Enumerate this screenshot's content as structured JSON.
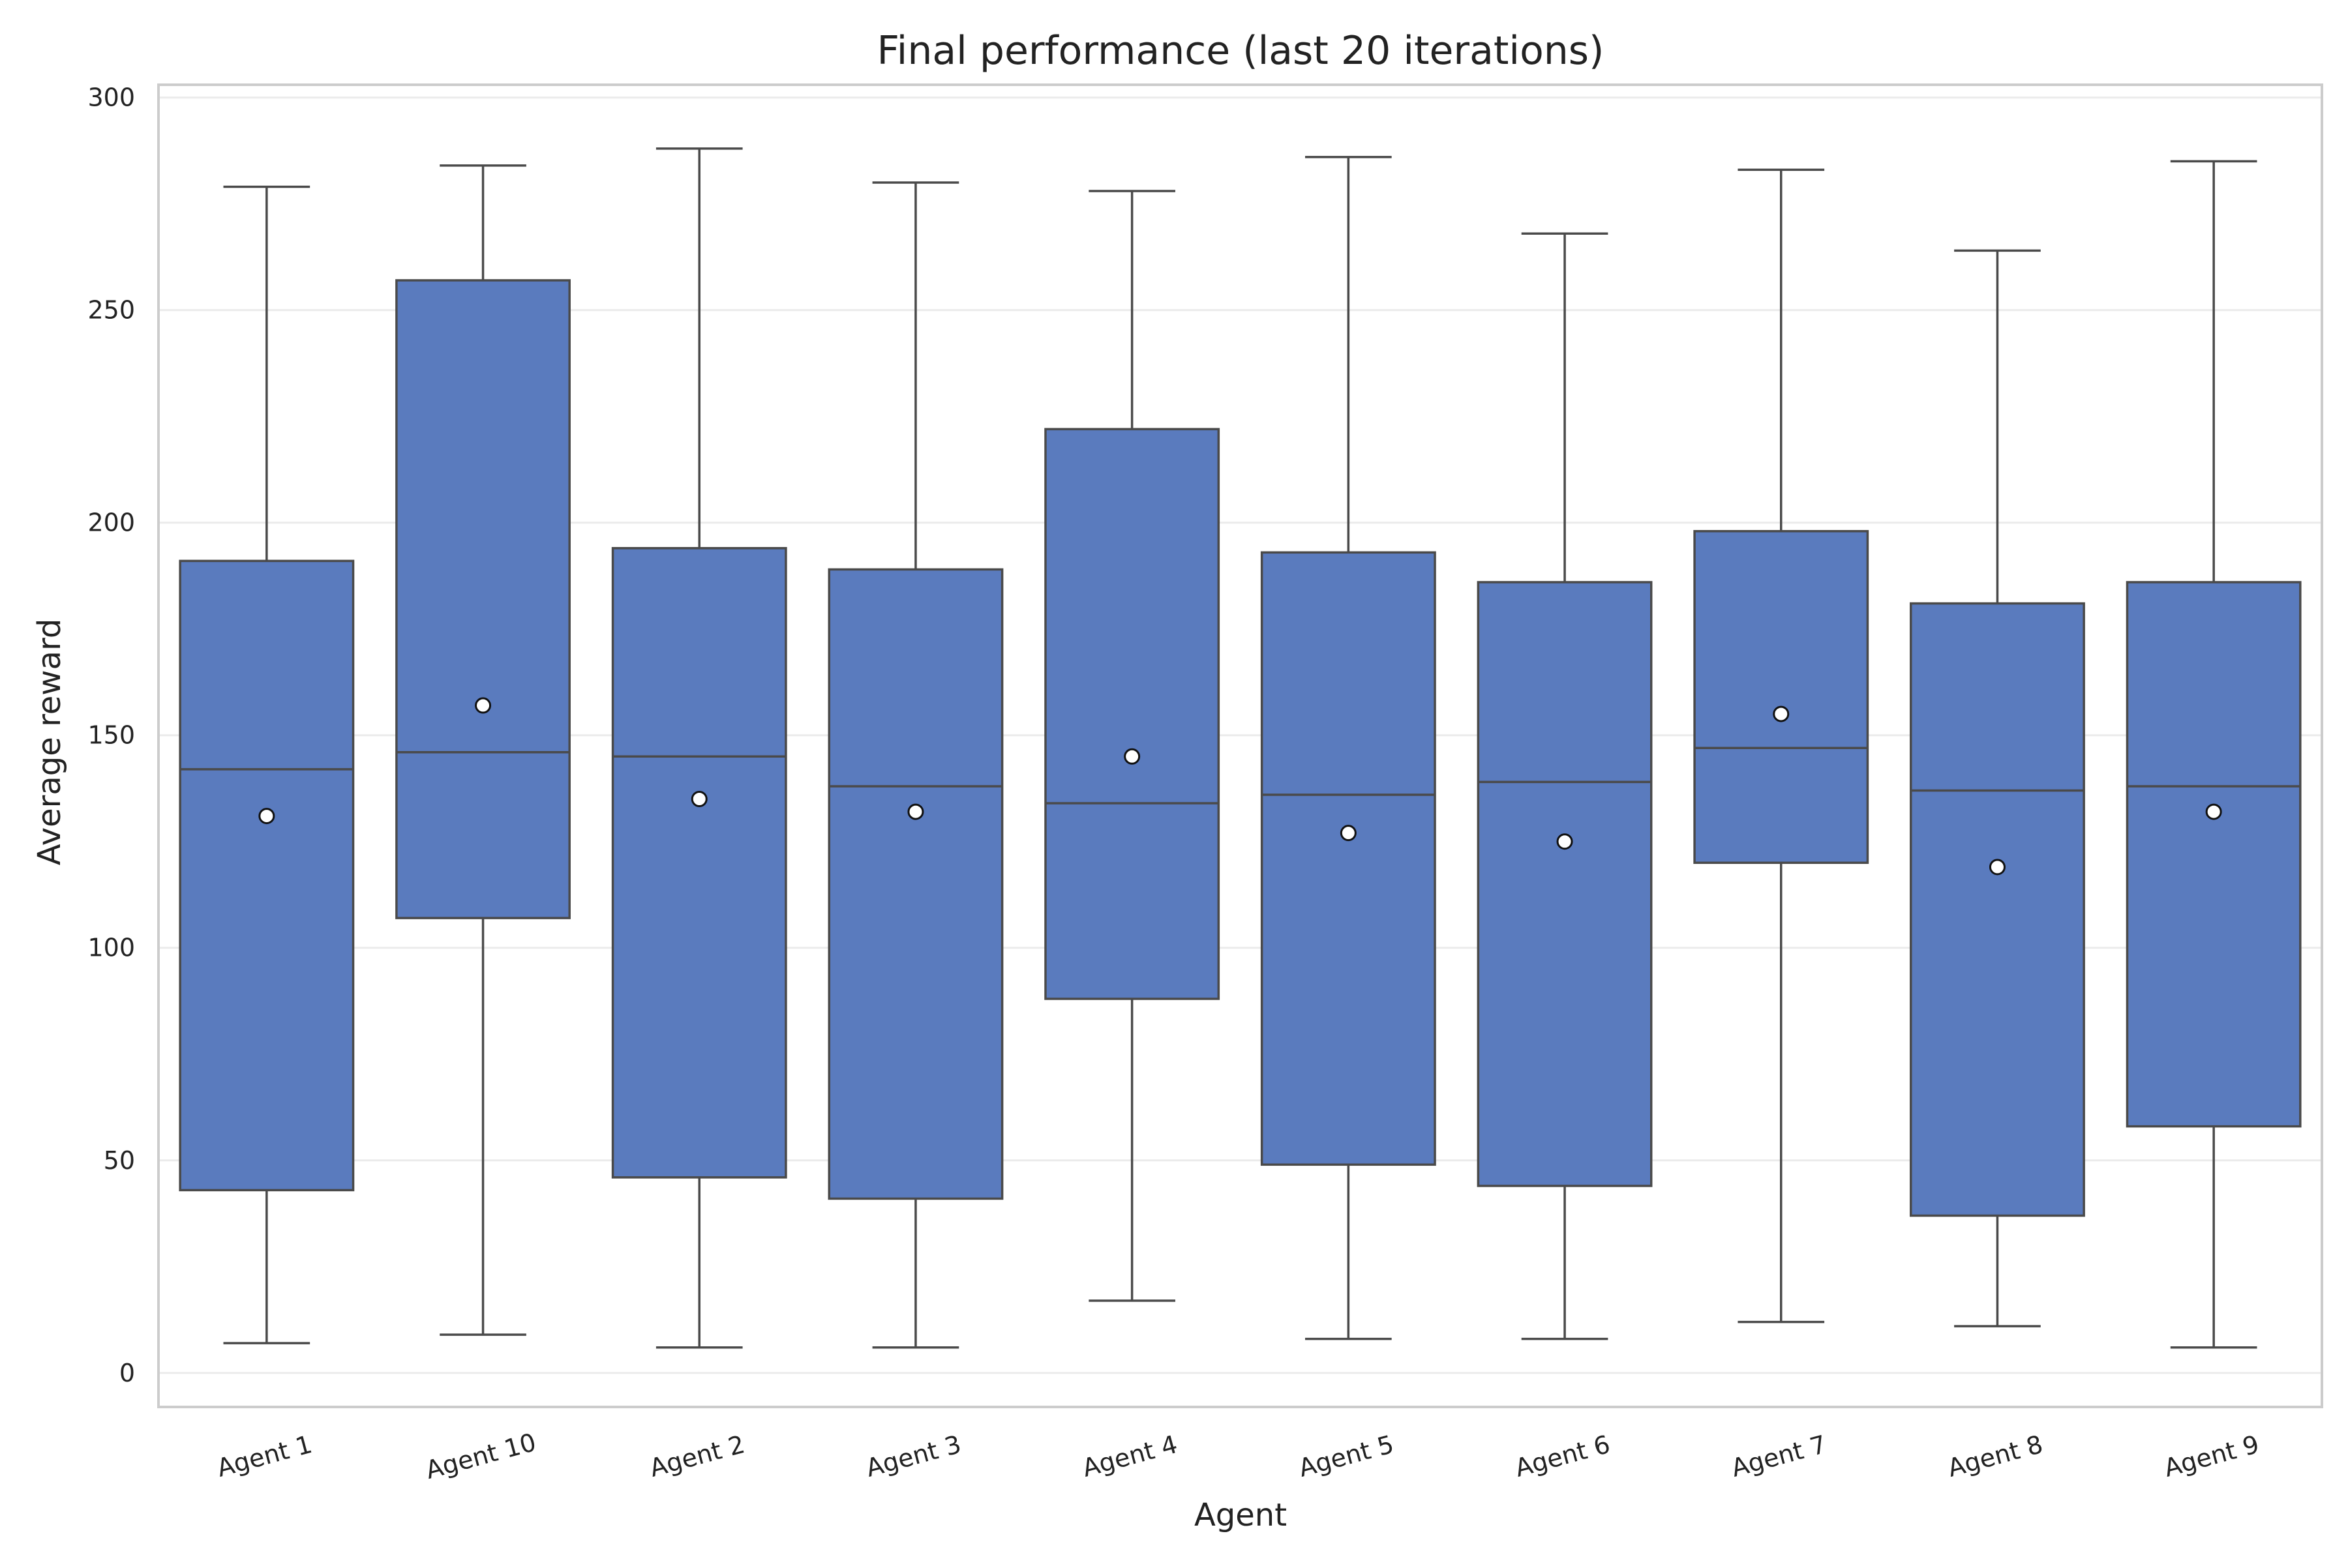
{
  "chart_data": {
    "type": "box",
    "title": "Final performance (last 20 iterations)",
    "xlabel": "Agent",
    "ylabel": "Average reward",
    "ylim": [
      -8,
      303
    ],
    "yticks": [
      0,
      50,
      100,
      150,
      200,
      250,
      300
    ],
    "grid": true,
    "color": "#5A7BBE",
    "categories": [
      "Agent 1",
      "Agent 10",
      "Agent 2",
      "Agent 3",
      "Agent 4",
      "Agent 5",
      "Agent 6",
      "Agent 7",
      "Agent 8",
      "Agent 9"
    ],
    "boxes": [
      {
        "whisker_low": 7,
        "q1": 43,
        "median": 142,
        "q3": 191,
        "whisker_high": 279,
        "mean": 131
      },
      {
        "whisker_low": 9,
        "q1": 107,
        "median": 146,
        "q3": 257,
        "whisker_high": 284,
        "mean": 157
      },
      {
        "whisker_low": 6,
        "q1": 46,
        "median": 145,
        "q3": 194,
        "whisker_high": 288,
        "mean": 135
      },
      {
        "whisker_low": 6,
        "q1": 41,
        "median": 138,
        "q3": 189,
        "whisker_high": 280,
        "mean": 132
      },
      {
        "whisker_low": 17,
        "q1": 88,
        "median": 134,
        "q3": 222,
        "whisker_high": 278,
        "mean": 145
      },
      {
        "whisker_low": 8,
        "q1": 49,
        "median": 136,
        "q3": 193,
        "whisker_high": 286,
        "mean": 127
      },
      {
        "whisker_low": 8,
        "q1": 44,
        "median": 139,
        "q3": 186,
        "whisker_high": 268,
        "mean": 125
      },
      {
        "whisker_low": 12,
        "q1": 120,
        "median": 147,
        "q3": 198,
        "whisker_high": 283,
        "mean": 155
      },
      {
        "whisker_low": 11,
        "q1": 37,
        "median": 137,
        "q3": 181,
        "whisker_high": 264,
        "mean": 119
      },
      {
        "whisker_low": 6,
        "q1": 58,
        "median": 138,
        "q3": 186,
        "whisker_high": 285,
        "mean": 132
      }
    ]
  }
}
